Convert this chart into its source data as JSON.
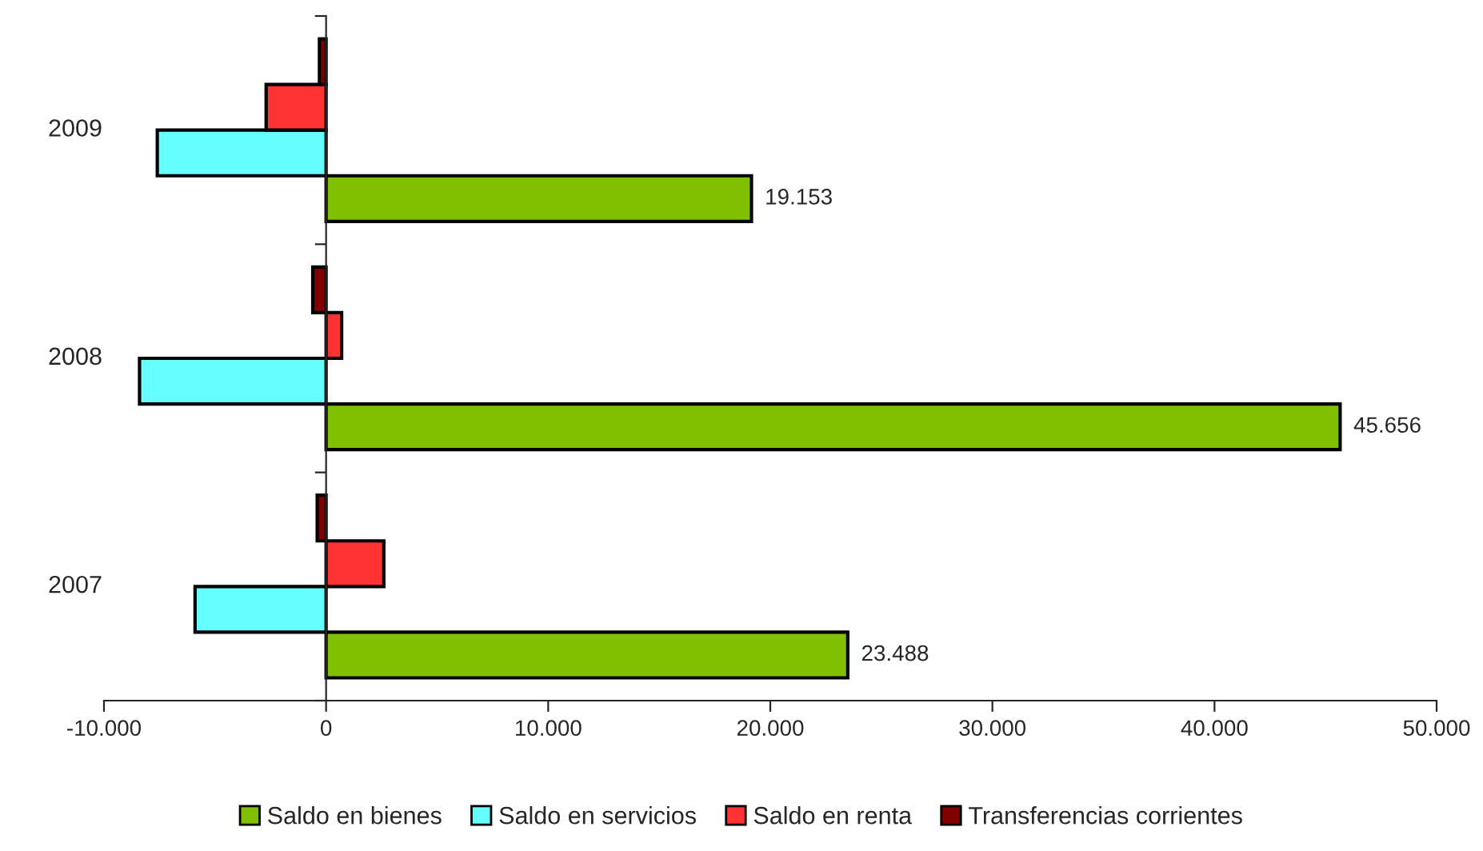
{
  "chart_data": {
    "type": "bar",
    "orientation": "horizontal",
    "categories": [
      "2009",
      "2008",
      "2007"
    ],
    "series": [
      {
        "name": "Saldo en bienes",
        "color": "#80c000",
        "values": [
          19153,
          45656,
          23488
        ],
        "value_labels": [
          "19.153",
          "45.656",
          "23.488"
        ]
      },
      {
        "name": "Saldo en servicios",
        "color": "#66ffff",
        "values": [
          -7600,
          -8400,
          -5900
        ]
      },
      {
        "name": "Saldo en renta",
        "color": "#ff3333",
        "values": [
          -2700,
          700,
          2600
        ]
      },
      {
        "name": "Transferencias corrientes",
        "color": "#800000",
        "values": [
          -300,
          -600,
          -400
        ]
      }
    ],
    "xlim": [
      -10000,
      50000
    ],
    "xticks": [
      {
        "value": -10000,
        "label": "-10.000"
      },
      0,
      {
        "value": 10000,
        "label": "10.000"
      },
      {
        "value": 20000,
        "label": "20.000"
      },
      {
        "value": 30000,
        "label": "30.000"
      },
      {
        "value": 40000,
        "label": "40.000"
      },
      {
        "value": 50000,
        "label": "50.000"
      }
    ],
    "legend": "bottom"
  }
}
